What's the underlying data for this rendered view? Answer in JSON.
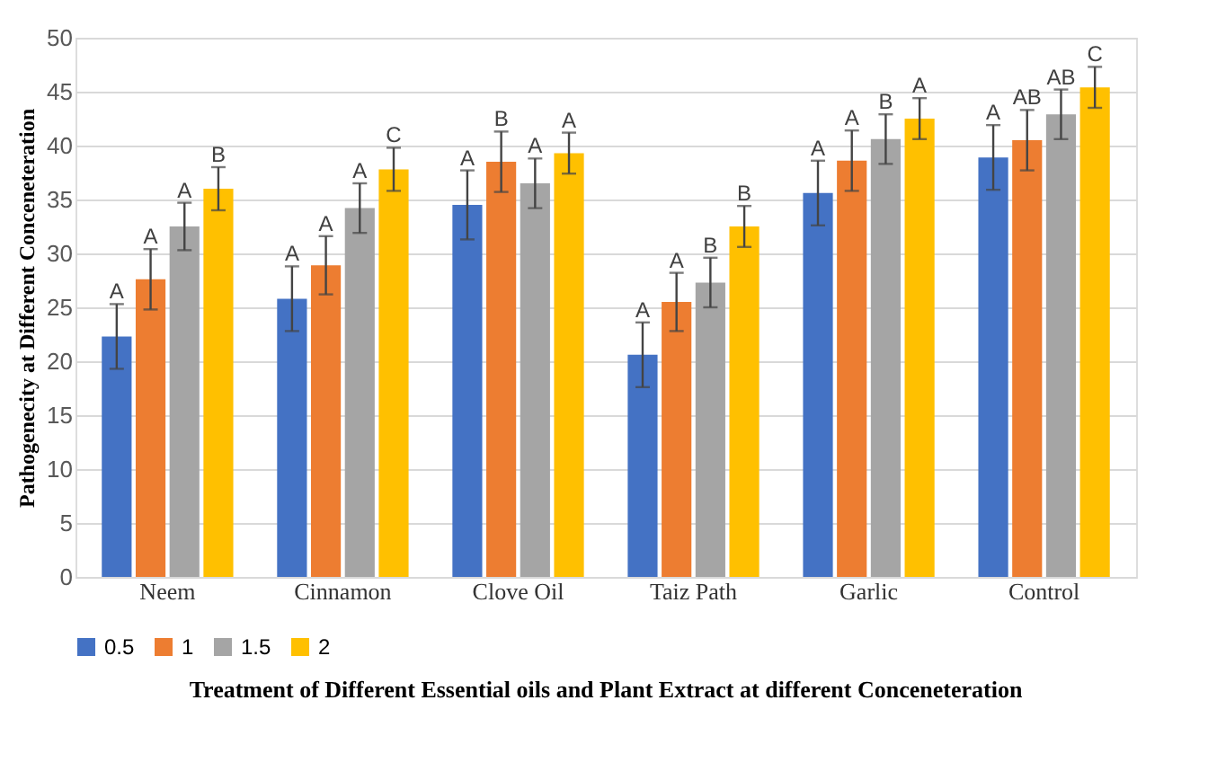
{
  "chart_data": {
    "type": "bar",
    "xlabel": "Treatment of Different Essential oils and Plant Extract at different Conceneteration",
    "ylabel": "Pathogenecity at Different Conceneteration",
    "categories": [
      "Neem",
      "Cinnamon",
      "Clove Oil",
      "Taiz Path",
      "Garlic",
      "Control"
    ],
    "series": [
      {
        "name": "0.5",
        "color": "#4472c4",
        "values": [
          22.3,
          25.8,
          34.5,
          20.6,
          35.6,
          38.9
        ],
        "errors": [
          3,
          3,
          3.2,
          3,
          3,
          3
        ],
        "value_labels": [
          "A",
          "A",
          "A",
          "A",
          "A",
          "A"
        ]
      },
      {
        "name": "1",
        "color": "#ed7d31",
        "values": [
          27.6,
          28.9,
          38.5,
          25.5,
          38.6,
          40.5
        ],
        "errors": [
          2.8,
          2.7,
          2.8,
          2.7,
          2.8,
          2.8
        ],
        "value_labels": [
          "A",
          "A",
          "B",
          "A",
          "A",
          "AB"
        ]
      },
      {
        "name": "1.5",
        "color": "#a5a5a5",
        "values": [
          32.5,
          34.2,
          36.5,
          27.3,
          40.6,
          42.9
        ],
        "errors": [
          2.2,
          2.3,
          2.3,
          2.3,
          2.3,
          2.3
        ],
        "value_labels": [
          "A",
          "A",
          "A",
          "B",
          "B",
          "AB"
        ]
      },
      {
        "name": "2",
        "color": "#ffc000",
        "values": [
          36,
          37.8,
          39.3,
          32.5,
          42.5,
          45.4
        ],
        "errors": [
          2,
          2,
          1.9,
          1.9,
          1.9,
          1.9
        ],
        "value_labels": [
          "B",
          "C",
          "A",
          "B",
          "A",
          "C"
        ]
      }
    ],
    "ylim": [
      0,
      50
    ],
    "yticks": [
      0,
      5,
      10,
      15,
      20,
      25,
      30,
      35,
      40,
      45,
      50
    ],
    "grid": "y",
    "legend": "bottom"
  }
}
